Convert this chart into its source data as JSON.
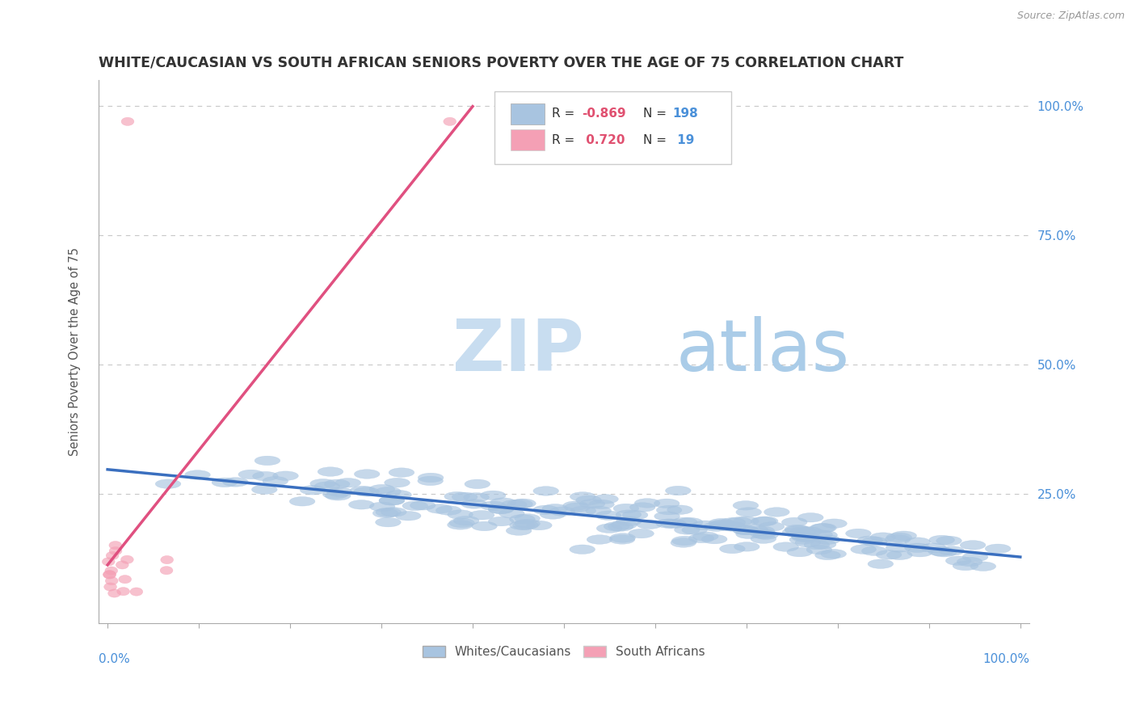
{
  "title": "WHITE/CAUCASIAN VS SOUTH AFRICAN SENIORS POVERTY OVER THE AGE OF 75 CORRELATION CHART",
  "source": "Source: ZipAtlas.com",
  "ylabel": "Seniors Poverty Over the Age of 75",
  "blue_R": -0.869,
  "blue_N": 198,
  "pink_R": 0.72,
  "pink_N": 19,
  "legend_blue_label": "Whites/Caucasians",
  "legend_pink_label": "South Africans",
  "blue_color": "#a8c4e0",
  "blue_line_color": "#3a6fbf",
  "pink_color": "#f4a0b5",
  "pink_line_color": "#e05080",
  "background_color": "#ffffff",
  "grid_color": "#c8c8c8",
  "title_color": "#333333",
  "right_label_color": "#4a90d9",
  "legend_R_color": "#e05070",
  "legend_N_color": "#4a90d9",
  "watermark_zip_color": "#c8ddf0",
  "watermark_atlas_color": "#aacce8"
}
